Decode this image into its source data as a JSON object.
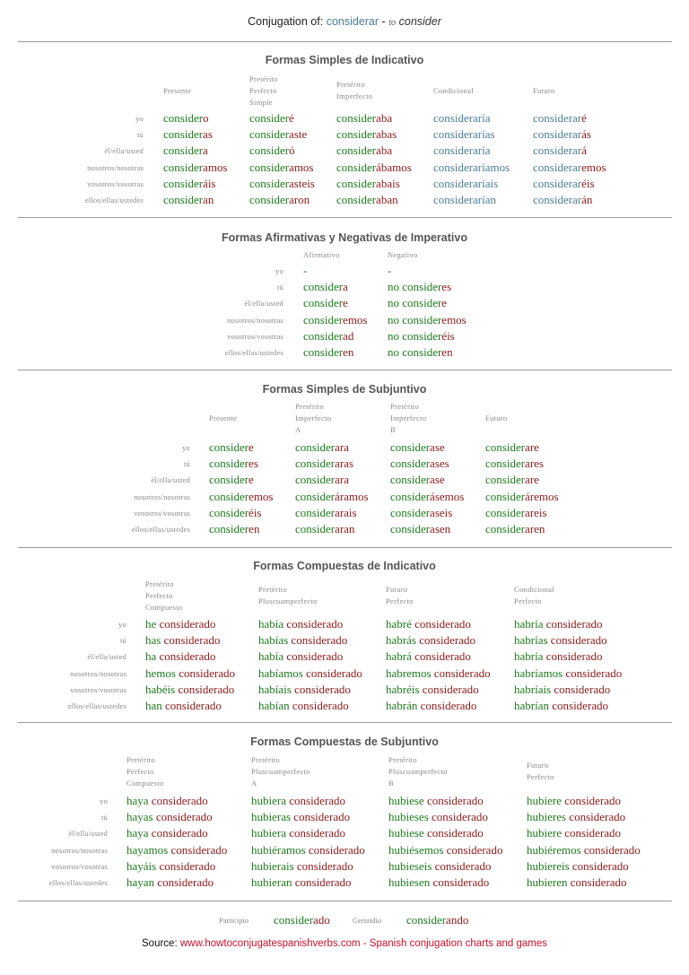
{
  "header": {
    "prefix": "Conjugation of:",
    "verb": "considerar",
    "dash": "-",
    "to": "to",
    "meaning": "consider"
  },
  "colors": {
    "stem_green": "#1e7a1e",
    "stem_blue": "#4a7d96",
    "ending_red": "#8b1a1a",
    "source_link": "#c8102e"
  },
  "sections": [
    {
      "title": "Formas Simples de Indicativo",
      "person_labels": [
        "yo",
        "tú",
        "él/ella/usted",
        "nosotros/nosotras",
        "vosotros/vosotras",
        "ellos/ellas/ustedes"
      ],
      "columns": [
        {
          "header_lines": [
            "Presente"
          ],
          "stem_color": "green",
          "forms": [
            [
              "consider",
              "o"
            ],
            [
              "consider",
              "as"
            ],
            [
              "consider",
              "a"
            ],
            [
              "consider",
              "amos"
            ],
            [
              "consider",
              "áis"
            ],
            [
              "consider",
              "an"
            ]
          ]
        },
        {
          "header_lines": [
            "Pretérito",
            "Perfecto",
            "Simple"
          ],
          "stem_color": "green",
          "forms": [
            [
              "consider",
              "é"
            ],
            [
              "consider",
              "aste"
            ],
            [
              "consider",
              "ó"
            ],
            [
              "consider",
              "amos"
            ],
            [
              "consider",
              "asteis"
            ],
            [
              "consider",
              "aron"
            ]
          ]
        },
        {
          "header_lines": [
            "Pretérito",
            "Imperfecto"
          ],
          "stem_color": "green",
          "forms": [
            [
              "consider",
              "aba"
            ],
            [
              "consider",
              "abas"
            ],
            [
              "consider",
              "aba"
            ],
            [
              "consider",
              "ábamos"
            ],
            [
              "consider",
              "abais"
            ],
            [
              "consider",
              "aban"
            ]
          ]
        },
        {
          "header_lines": [
            "Condicional"
          ],
          "stem_color": "blue",
          "forms": [
            [
              "consideraría",
              ""
            ],
            [
              "considerarías",
              ""
            ],
            [
              "consideraría",
              ""
            ],
            [
              "consideraríamos",
              ""
            ],
            [
              "consideraríais",
              ""
            ],
            [
              "considerarían",
              ""
            ]
          ]
        },
        {
          "header_lines": [
            "Futuro"
          ],
          "stem_color": "blue",
          "forms": [
            [
              "considerar",
              "é"
            ],
            [
              "considerar",
              "ás"
            ],
            [
              "considerar",
              "á"
            ],
            [
              "considerar",
              "emos"
            ],
            [
              "considerar",
              "éis"
            ],
            [
              "considerar",
              "án"
            ]
          ]
        }
      ]
    },
    {
      "title": "Formas Afirmativas y Negativas de Imperativo",
      "person_labels": [
        "yo",
        "tú",
        "él/ella/usted",
        "nosotros/nosotras",
        "vosotros/vosotras",
        "ellos/ellas/ustedes"
      ],
      "columns": [
        {
          "header_lines": [
            "Afirmativo"
          ],
          "stem_color": "green",
          "forms": [
            [
              "-",
              ""
            ],
            [
              "consider",
              "a"
            ],
            [
              "consider",
              "e"
            ],
            [
              "consider",
              "emos"
            ],
            [
              "consider",
              "ad"
            ],
            [
              "consider",
              "en"
            ]
          ]
        },
        {
          "header_lines": [
            "Negativo"
          ],
          "stem_color": "green",
          "forms": [
            [
              "-",
              ""
            ],
            [
              "no consider",
              "es"
            ],
            [
              "no consider",
              "e"
            ],
            [
              "no consider",
              "emos"
            ],
            [
              "no consider",
              "éis"
            ],
            [
              "no consider",
              "en"
            ]
          ]
        }
      ]
    },
    {
      "title": "Formas Simples de Subjuntivo",
      "person_labels": [
        "yo",
        "tú",
        "él/ella/usted",
        "nosotros/nosotras",
        "vosotros/vosotras",
        "ellos/ellas/ustedes"
      ],
      "columns": [
        {
          "header_lines": [
            "Presente"
          ],
          "stem_color": "green",
          "forms": [
            [
              "consider",
              "e"
            ],
            [
              "consider",
              "es"
            ],
            [
              "consider",
              "e"
            ],
            [
              "consider",
              "emos"
            ],
            [
              "consider",
              "éis"
            ],
            [
              "consider",
              "en"
            ]
          ]
        },
        {
          "header_lines": [
            "Pretérito",
            "Imperfecto",
            "A"
          ],
          "stem_color": "green",
          "forms": [
            [
              "consider",
              "ara"
            ],
            [
              "consider",
              "aras"
            ],
            [
              "consider",
              "ara"
            ],
            [
              "consider",
              "áramos"
            ],
            [
              "consider",
              "arais"
            ],
            [
              "consider",
              "aran"
            ]
          ]
        },
        {
          "header_lines": [
            "Pretérito",
            "Imperfecto",
            "B"
          ],
          "stem_color": "green",
          "forms": [
            [
              "consider",
              "ase"
            ],
            [
              "consider",
              "ases"
            ],
            [
              "consider",
              "ase"
            ],
            [
              "consider",
              "ásemos"
            ],
            [
              "consider",
              "aseis"
            ],
            [
              "consider",
              "asen"
            ]
          ]
        },
        {
          "header_lines": [
            "Futuro"
          ],
          "stem_color": "green",
          "forms": [
            [
              "consider",
              "are"
            ],
            [
              "consider",
              "ares"
            ],
            [
              "consider",
              "are"
            ],
            [
              "consider",
              "áremos"
            ],
            [
              "consider",
              "areis"
            ],
            [
              "consider",
              "aren"
            ]
          ]
        }
      ]
    },
    {
      "title": "Formas Compuestas de Indicativo",
      "person_labels": [
        "yo",
        "tú",
        "él/ella/usted",
        "nosotros/nosotras",
        "vosotros/vosotras",
        "ellos/ellas/ustedes"
      ],
      "columns": [
        {
          "header_lines": [
            "Pretérito",
            "Perfecto",
            "Compuesto"
          ],
          "stem_color": "green",
          "forms": [
            [
              "he",
              " considerado"
            ],
            [
              "has",
              " considerado"
            ],
            [
              "ha",
              " considerado"
            ],
            [
              "hemos",
              " considerado"
            ],
            [
              "habéis",
              " considerado"
            ],
            [
              "han",
              " considerado"
            ]
          ]
        },
        {
          "header_lines": [
            "Pretérito",
            "Pluscuamperfecto"
          ],
          "stem_color": "green",
          "forms": [
            [
              "había",
              " considerado"
            ],
            [
              "habías",
              " considerado"
            ],
            [
              "había",
              " considerado"
            ],
            [
              "habíamos",
              " considerado"
            ],
            [
              "habíais",
              " considerado"
            ],
            [
              "habían",
              " considerado"
            ]
          ]
        },
        {
          "header_lines": [
            "Futuro",
            "Perfecto"
          ],
          "stem_color": "green",
          "forms": [
            [
              "habré",
              " considerado"
            ],
            [
              "habrás",
              " considerado"
            ],
            [
              "habrá",
              " considerado"
            ],
            [
              "habremos",
              " considerado"
            ],
            [
              "habréis",
              " considerado"
            ],
            [
              "habrán",
              " considerado"
            ]
          ]
        },
        {
          "header_lines": [
            "Condicional",
            "Perfecto"
          ],
          "stem_color": "green",
          "forms": [
            [
              "habría",
              " considerado"
            ],
            [
              "habrías",
              " considerado"
            ],
            [
              "habría",
              " considerado"
            ],
            [
              "habríamos",
              " considerado"
            ],
            [
              "habríais",
              " considerado"
            ],
            [
              "habrían",
              " considerado"
            ]
          ]
        }
      ]
    },
    {
      "title": "Formas Compuestas de Subjuntivo",
      "person_labels": [
        "yo",
        "tú",
        "él/ella/usted",
        "nosotros/nosotras",
        "vosotros/vosotras",
        "ellos/ellas/ustedes"
      ],
      "columns": [
        {
          "header_lines": [
            "Pretérito",
            "Perfecto",
            "Compuesto"
          ],
          "stem_color": "green",
          "forms": [
            [
              "haya",
              " considerado"
            ],
            [
              "hayas",
              " considerado"
            ],
            [
              "haya",
              " considerado"
            ],
            [
              "hayamos",
              " considerado"
            ],
            [
              "hayáis",
              " considerado"
            ],
            [
              "hayan",
              " considerado"
            ]
          ]
        },
        {
          "header_lines": [
            "Pretérito",
            "Pluscuamperfecto",
            "A"
          ],
          "stem_color": "green",
          "forms": [
            [
              "hubiera",
              " considerado"
            ],
            [
              "hubieras",
              " considerado"
            ],
            [
              "hubiera",
              " considerado"
            ],
            [
              "hubiéramos",
              " considerado"
            ],
            [
              "hubierais",
              " considerado"
            ],
            [
              "hubieran",
              " considerado"
            ]
          ]
        },
        {
          "header_lines": [
            "Pretérito",
            "Pluscuamperfecto",
            "B"
          ],
          "stem_color": "green",
          "forms": [
            [
              "hubiese",
              " considerado"
            ],
            [
              "hubieses",
              " considerado"
            ],
            [
              "hubiese",
              " considerado"
            ],
            [
              "hubiésemos",
              " considerado"
            ],
            [
              "hubieseis",
              " considerado"
            ],
            [
              "hubiesen",
              " considerado"
            ]
          ]
        },
        {
          "header_lines": [
            "Futuro",
            "Perfecto"
          ],
          "stem_color": "green",
          "forms": [
            [
              "hubiere",
              " considerado"
            ],
            [
              "hubieres",
              " considerado"
            ],
            [
              "hubiere",
              " considerado"
            ],
            [
              "hubiéremos",
              " considerado"
            ],
            [
              "hubiereis",
              " considerado"
            ],
            [
              "hubieren",
              " considerado"
            ]
          ]
        }
      ]
    }
  ],
  "nonfinite": {
    "participio_label": "Participio",
    "participio": [
      "consider",
      "ado"
    ],
    "gerundio_label": "Gerundio",
    "gerundio": [
      "consider",
      "ando"
    ]
  },
  "source": {
    "label": "Source:",
    "link": "www.howtoconjugatespanishverbs.com",
    "tagline": " - Spanish conjugation charts and games"
  }
}
